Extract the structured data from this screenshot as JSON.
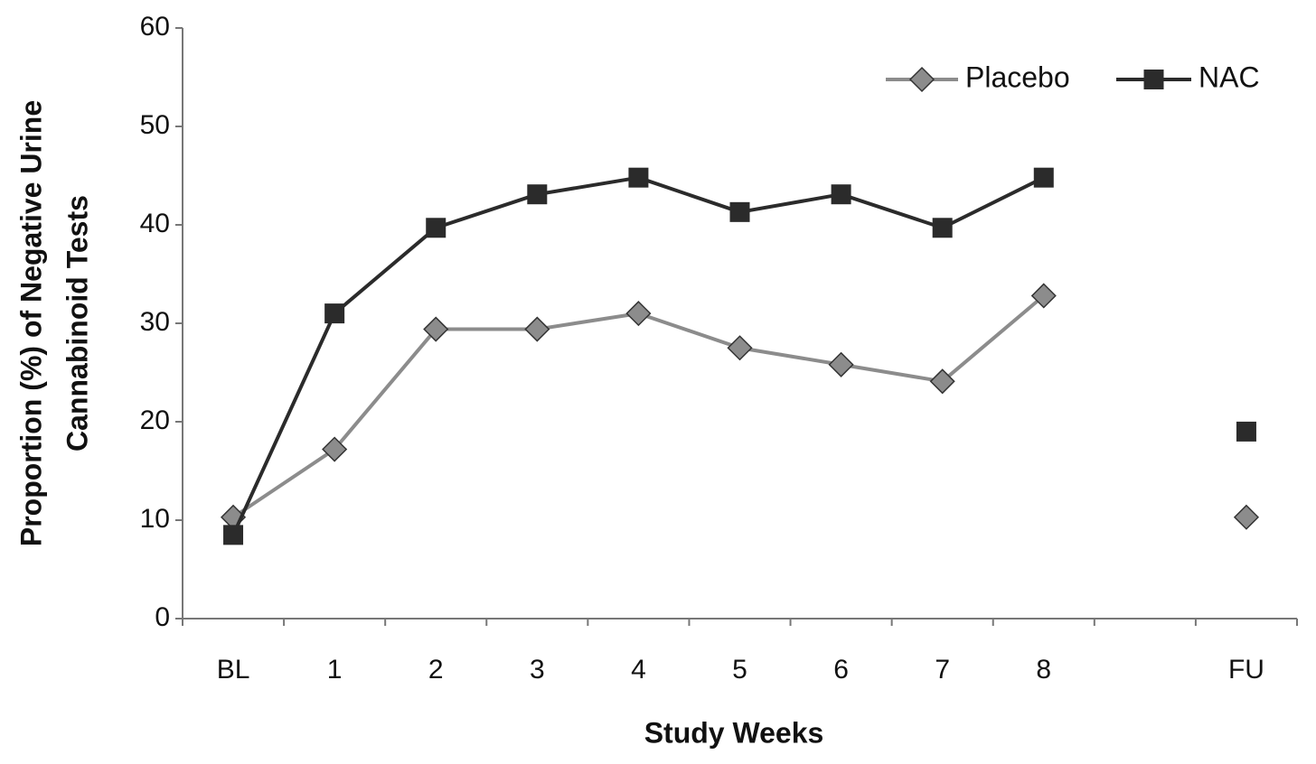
{
  "chart_data": {
    "type": "line",
    "xlabel": "Study Weeks",
    "ylabel": [
      "Proportion (%) of Negative Urine",
      "Cannabinoid Tests"
    ],
    "categories": [
      "BL",
      "1",
      "2",
      "3",
      "4",
      "5",
      "6",
      "7",
      "8",
      null,
      "FU"
    ],
    "series": [
      {
        "name": "Placebo",
        "color": "#8c8c8c",
        "marker": "diamond",
        "values": [
          10.3,
          17.2,
          29.4,
          29.4,
          31.0,
          27.5,
          25.8,
          24.1,
          32.8,
          null,
          10.3
        ]
      },
      {
        "name": "NAC",
        "color": "#2b2b2b",
        "marker": "square",
        "values": [
          8.5,
          31.0,
          39.7,
          43.1,
          44.8,
          41.3,
          43.1,
          39.7,
          44.8,
          null,
          19.0
        ]
      }
    ],
    "ylim": [
      0,
      60
    ],
    "yticks": [
      0,
      10,
      20,
      30,
      40,
      50,
      60
    ],
    "legend": "top-right"
  }
}
